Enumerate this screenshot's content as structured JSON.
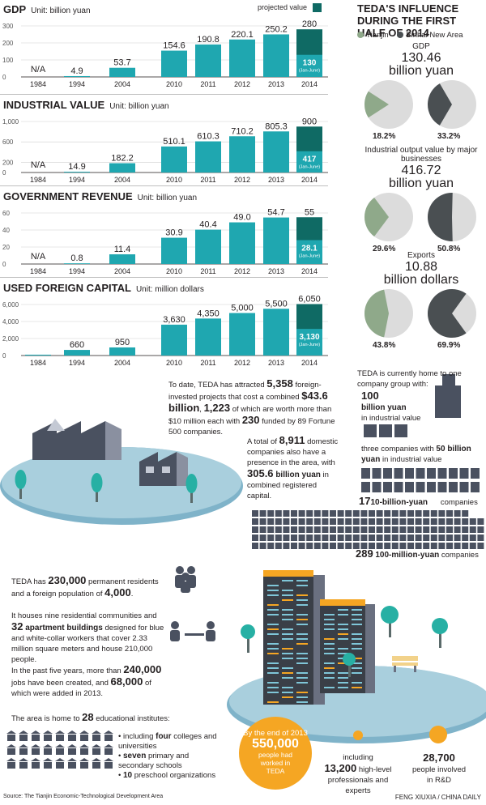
{
  "chart_data": [
    {
      "type": "bar",
      "title": "GDP",
      "unit": "Unit: billion yuan",
      "categories": [
        "1984",
        "1994",
        "2004",
        "2010",
        "2011",
        "2012",
        "2013",
        "2014"
      ],
      "values": [
        null,
        4.9,
        53.7,
        154.6,
        190.8,
        220.1,
        250.2,
        280
      ],
      "value_labels": [
        "N/A",
        "4.9",
        "53.7",
        "154.6",
        "190.8",
        "220.1",
        "250.2",
        "280"
      ],
      "sub_value": 130,
      "sub_label": "130",
      "sub_note": "(Jan-June)",
      "y_ticks": [
        "300",
        "200",
        "100",
        "0"
      ],
      "ylim": [
        0,
        300
      ]
    },
    {
      "type": "bar",
      "title": "INDUSTRIAL VALUE",
      "unit": "Unit: billion yuan",
      "categories": [
        "1984",
        "1994",
        "2004",
        "2010",
        "2011",
        "2012",
        "2013",
        "2014"
      ],
      "values": [
        null,
        14.9,
        182.2,
        510.1,
        610.3,
        710.2,
        805.3,
        900
      ],
      "value_labels": [
        "N/A",
        "14.9",
        "182.2",
        "510.1",
        "610.3",
        "710.2",
        "805.3",
        "900"
      ],
      "sub_value": 417,
      "sub_label": "417",
      "sub_note": "(Jan-June)",
      "y_ticks": [
        "1,000",
        "600",
        "200",
        "0"
      ],
      "ylim": [
        0,
        1000
      ]
    },
    {
      "type": "bar",
      "title": "GOVERNMENT REVENUE",
      "unit": "Unit: billion yuan",
      "categories": [
        "1984",
        "1994",
        "2004",
        "2010",
        "2011",
        "2012",
        "2013",
        "2014"
      ],
      "values": [
        null,
        0.8,
        11.4,
        30.9,
        40.4,
        49.0,
        54.7,
        55
      ],
      "value_labels": [
        "N/A",
        "0.8",
        "11.4",
        "30.9",
        "40.4",
        "49.0",
        "54.7",
        "55"
      ],
      "sub_value": 28.1,
      "sub_label": "28.1",
      "sub_note": "(Jan-June)",
      "y_ticks": [
        "60",
        "40",
        "20",
        "0"
      ],
      "ylim": [
        0,
        60
      ]
    },
    {
      "type": "bar",
      "title": "USED FOREIGN CAPITAL",
      "unit": "Unit: million dollars",
      "categories": [
        "1984",
        "1994",
        "2004",
        "2010",
        "2011",
        "2012",
        "2013",
        "2014"
      ],
      "values": [
        100,
        660,
        950,
        3630,
        4350,
        5000,
        5500,
        6050
      ],
      "value_labels": [
        "",
        "660",
        "950",
        "3,630",
        "4,350",
        "5,000",
        "5,500",
        "6,050"
      ],
      "sub_value": 3130,
      "sub_label": "3,130",
      "sub_note": "(Jan-June)",
      "y_ticks": [
        "6,000",
        "4,000",
        "2,000",
        "0"
      ],
      "ylim": [
        0,
        6000
      ]
    },
    {
      "type": "pie",
      "title": "TEDA'S INFLUENCE DURING THE FIRST HALF OF 2014",
      "legend": [
        "Tianjin",
        "Binhai New Area"
      ],
      "items": [
        {
          "label": "GDP",
          "big": "130.46",
          "unit": "billion yuan",
          "tianjin": 18.2,
          "binhai": 33.2,
          "tianjin_label": "18.2%",
          "binhai_label": "33.2%"
        },
        {
          "label": "Industrial output value by major businesses",
          "big": "416.72",
          "unit": "billion yuan",
          "tianjin": 29.6,
          "binhai": 50.8,
          "tianjin_label": "29.6%",
          "binhai_label": "50.8%"
        },
        {
          "label": "Exports",
          "big": "10.88",
          "unit": "billion dollars",
          "tianjin": 43.8,
          "binhai": 69.9,
          "tianjin_label": "43.8%",
          "binhai_label": "69.9%"
        }
      ]
    }
  ],
  "legend": {
    "projected": "projected value"
  },
  "colors": {
    "teal": "#1fa7b0",
    "dark_teal": "#0f6a64",
    "gray_pie": "#dcdcdc",
    "green": "#8fa98a",
    "dark_gray": "#4a4f52",
    "orange": "#f5a623",
    "slate": "#4a5160"
  },
  "mid": {
    "p1": {
      "a": "To date, TEDA has attracted ",
      "b": "5,358",
      "c": " foreign-invested projects that cost a combined ",
      "d": "$43.6 billion",
      "e": ", ",
      "f": "1,223",
      "g": " of which are worth more than $10 million each with ",
      "h": "230",
      "i": " funded by 89 Fortune 500 companies."
    },
    "p2": {
      "a": "A total of ",
      "b": "8,911",
      "c": " domestic companies also have a presence in the area, with ",
      "d": "305.6",
      "e": " billion yuan",
      "f": " in combined registered capital."
    },
    "r1": "TEDA is currently home to one company group with:",
    "r2a": "100",
    "r2b": "billion yuan",
    "r2c": "in industrial value",
    "r3a": "three companies with ",
    "r3b": "50 billion yuan",
    "r3c": " in industrial value",
    "r4a": "17",
    "r4b": "10-billion-yuan",
    "r4c": "companies",
    "r5a": "289",
    "r5b": "100-million-yuan",
    "r5c": "companies"
  },
  "low": {
    "l1a": "TEDA has ",
    "l1b": "230,000",
    "l1c": " permanent residents and a foreign population of ",
    "l1d": "4,000",
    "l1e": ".",
    "l2a": "It houses nine residential communities and ",
    "l2b": "32",
    "l2c": " apartment buildings",
    "l2d": " designed for blue and white-collar workers that cover 2.33 million square meters and house 210,000 people.",
    "l3a": "In the past five years, more than ",
    "l3b": "240,000",
    "l3c": " jobs have been created, and ",
    "l3d": "68,000",
    "l3e": " of which were added in 2013.",
    "l4a": "The area is home to ",
    "l4b": "28",
    "l4c": " educational institutes:",
    "b1a": "• including ",
    "b1b": "four",
    "b1c": " colleges and universities",
    "b2a": "• ",
    "b2b": "seven",
    "b2c": " primary and secondary schools",
    "b3a": "• ",
    "b3b": "10",
    "b3c": " preschool organizations",
    "c1a": "By the end of 2013",
    "c1b": "550,000",
    "c1c": "people had worked in TEDA",
    "c2a": "including",
    "c2b": "13,200",
    "c2c": " high-level professionals and experts",
    "c3a": "28,700",
    "c3b": "people involved in R&D"
  },
  "footer": {
    "source": "Source: The Tianjin Economic-Technological Development Area",
    "credit": "FENG XIUXIA / CHINA DAILY"
  }
}
